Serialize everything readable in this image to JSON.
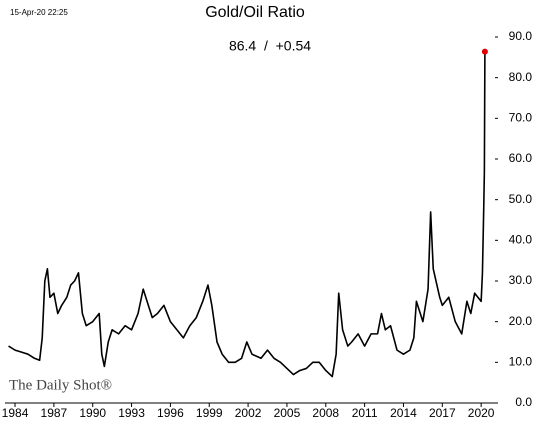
{
  "chart_data": {
    "type": "line",
    "title": "Gold/Oil Ratio",
    "timestamp": "15-Apr-20 22:25",
    "annotation": "86.4  /  +0.54",
    "watermark": "The Daily Shot®",
    "x": [
      1983.5,
      1984,
      1984.5,
      1985,
      1985.5,
      1985.9,
      1986.1,
      1986.3,
      1986.5,
      1986.7,
      1987,
      1987.3,
      1987.6,
      1988,
      1988.3,
      1988.6,
      1988.9,
      1989.2,
      1989.5,
      1990,
      1990.5,
      1990.7,
      1990.9,
      1991.2,
      1991.5,
      1992,
      1992.5,
      1993,
      1993.5,
      1993.9,
      1994.2,
      1994.6,
      1995,
      1995.5,
      1996,
      1996.5,
      1997,
      1997.5,
      1998,
      1998.5,
      1998.9,
      1999.2,
      1999.6,
      2000,
      2000.5,
      2001,
      2001.5,
      2001.9,
      2002.3,
      2003,
      2003.5,
      2004,
      2004.5,
      2005,
      2005.5,
      2006,
      2006.5,
      2007,
      2007.5,
      2008,
      2008.5,
      2008.8,
      2009,
      2009.3,
      2009.7,
      2010,
      2010.5,
      2011,
      2011.5,
      2012,
      2012.3,
      2012.6,
      2013,
      2013.5,
      2014,
      2014.5,
      2014.8,
      2015,
      2015.5,
      2015.9,
      2016.1,
      2016.3,
      2016.8,
      2017,
      2017.5,
      2018,
      2018.5,
      2018.9,
      2019.2,
      2019.5,
      2020,
      2020.1,
      2020.2,
      2020.25,
      2020.29
    ],
    "series": [
      {
        "name": "Gold/Oil Ratio",
        "color": "#000000",
        "values": [
          14,
          13,
          12.5,
          12,
          11,
          10.5,
          16,
          30,
          33,
          26,
          27,
          22,
          24,
          26,
          29,
          30,
          32,
          22,
          19,
          20,
          22,
          12,
          9,
          15,
          18,
          17,
          19,
          18,
          22,
          28,
          25,
          21,
          22,
          24,
          20,
          18,
          16,
          19,
          21,
          25,
          29,
          24,
          15,
          12,
          10,
          10,
          11,
          15,
          12,
          11,
          13,
          11,
          10,
          8.5,
          7,
          8,
          8.5,
          10,
          10,
          8,
          6.5,
          12,
          27,
          18,
          14,
          15,
          17,
          14,
          17,
          17,
          22,
          18,
          19,
          13,
          12,
          13,
          16,
          25,
          20,
          28,
          47,
          33,
          26,
          24,
          26,
          20,
          17,
          25,
          22,
          27,
          25,
          32,
          48,
          57,
          86.4
        ]
      }
    ],
    "endpoint_color": "#e00000",
    "xlim": [
      1983.38,
      2021.07
    ],
    "xticks": [
      1984,
      1987,
      1990,
      1993,
      1996,
      1999,
      2002,
      2005,
      2008,
      2011,
      2014,
      2017,
      2020
    ],
    "ylim": [
      0,
      90
    ],
    "yticks": [
      {
        "value": 0,
        "label": "0.0"
      },
      {
        "value": 10,
        "label": "10.0"
      },
      {
        "value": 20,
        "label": "20.0"
      },
      {
        "value": 30,
        "label": "30.0"
      },
      {
        "value": 40,
        "label": "40.0"
      },
      {
        "value": 50,
        "label": "50.0"
      },
      {
        "value": 60,
        "label": "60.0"
      },
      {
        "value": 70,
        "label": "70.0"
      },
      {
        "value": 80,
        "label": "80.0"
      },
      {
        "value": 90,
        "label": "90.0"
      }
    ]
  }
}
